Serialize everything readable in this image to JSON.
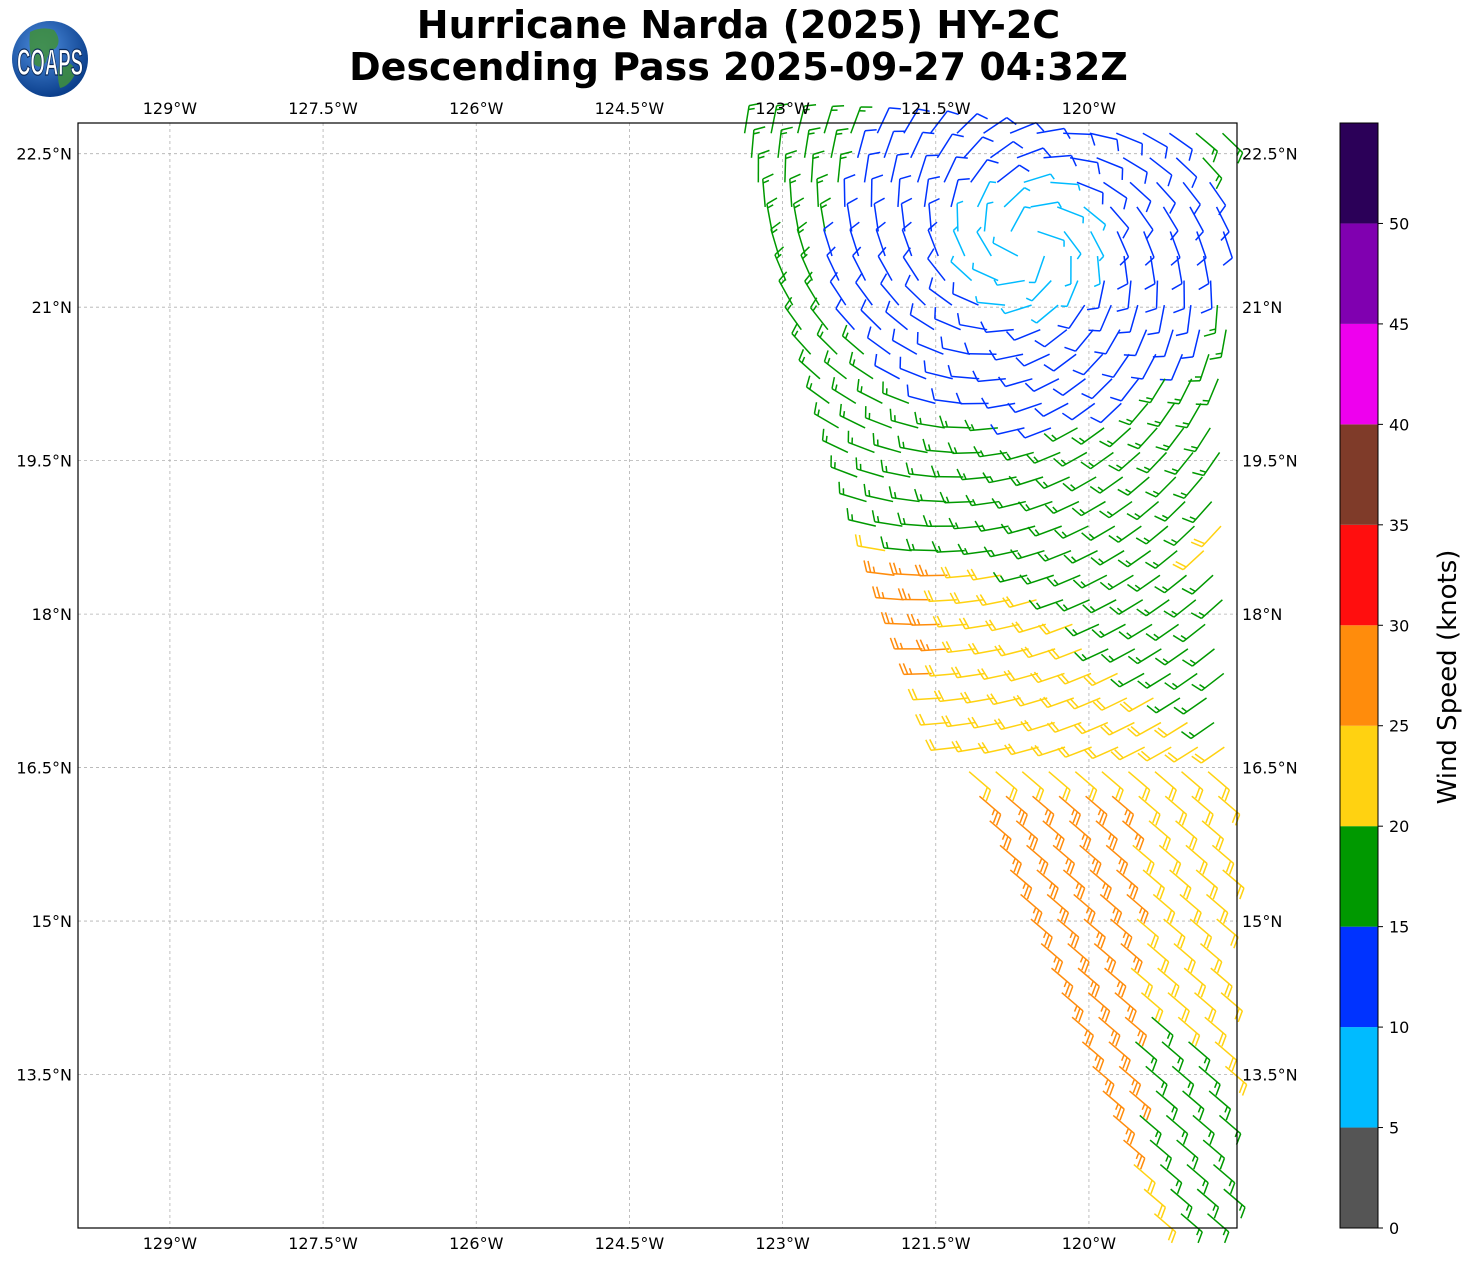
{
  "title": {
    "line1": "Hurricane Narda (2025) HY-2C",
    "line2": "Descending Pass 2025-09-27 04:32Z"
  },
  "logo": {
    "text": "COAPS",
    "icon": "globe-logo-icon"
  },
  "map": {
    "lon_range": [
      -129.9,
      -118.55
    ],
    "lat_range": [
      12.0,
      22.8
    ],
    "gridlines": true,
    "lon_ticks": [
      {
        "value": -129.0,
        "label": "129°W"
      },
      {
        "value": -127.5,
        "label": "127.5°W"
      },
      {
        "value": -126.0,
        "label": "126°W"
      },
      {
        "value": -124.5,
        "label": "124.5°W"
      },
      {
        "value": -123.0,
        "label": "123°W"
      },
      {
        "value": -121.5,
        "label": "121.5°W"
      },
      {
        "value": -120.0,
        "label": "120°W"
      }
    ],
    "lat_ticks": [
      {
        "value": 22.5,
        "label": "22.5°N"
      },
      {
        "value": 21.0,
        "label": "21°N"
      },
      {
        "value": 19.5,
        "label": "19.5°N"
      },
      {
        "value": 18.0,
        "label": "18°N"
      },
      {
        "value": 16.5,
        "label": "16.5°N"
      },
      {
        "value": 15.0,
        "label": "15°N"
      },
      {
        "value": 13.5,
        "label": "13.5°N"
      }
    ],
    "storm_center": {
      "lon": -120.6,
      "lat": 21.6
    }
  },
  "colorbar": {
    "title": "Wind Speed (knots)",
    "range": [
      0,
      55
    ],
    "bins": [
      {
        "from": 0,
        "to": 5,
        "color": "#555555"
      },
      {
        "from": 5,
        "to": 10,
        "color": "#00bbff"
      },
      {
        "from": 10,
        "to": 15,
        "color": "#0033ff"
      },
      {
        "from": 15,
        "to": 20,
        "color": "#009900"
      },
      {
        "from": 20,
        "to": 25,
        "color": "#ffd211"
      },
      {
        "from": 25,
        "to": 30,
        "color": "#ff8c0c"
      },
      {
        "from": 30,
        "to": 35,
        "color": "#ff0e0e"
      },
      {
        "from": 35,
        "to": 40,
        "color": "#7f3b29"
      },
      {
        "from": 40,
        "to": 45,
        "color": "#ee00ee"
      },
      {
        "from": 45,
        "to": 50,
        "color": "#8000b0"
      },
      {
        "from": 50,
        "to": 55,
        "color": "#2b0058"
      }
    ],
    "tick_labels": [
      "0",
      "5",
      "10",
      "15",
      "20",
      "25",
      "30",
      "35",
      "40",
      "45",
      "50"
    ]
  }
}
